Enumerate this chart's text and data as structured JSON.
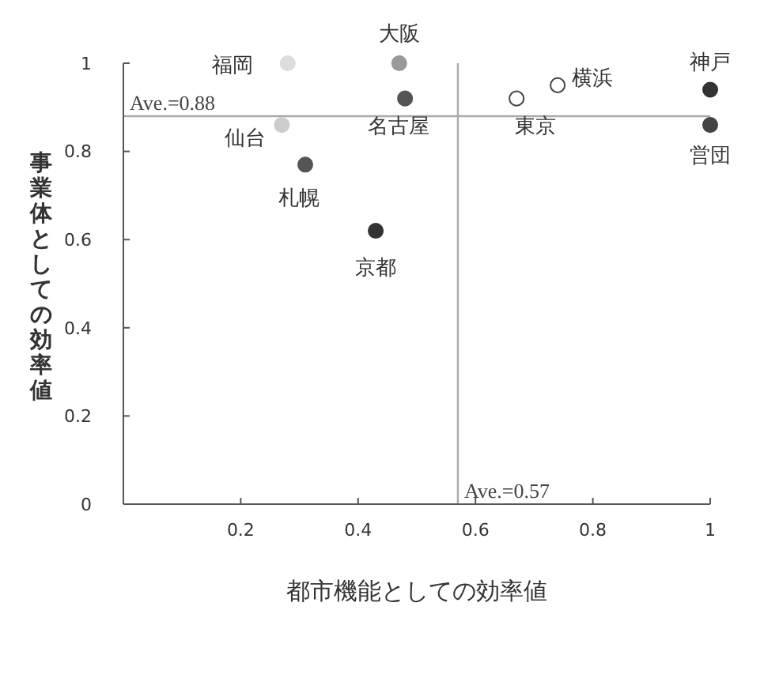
{
  "chart_data": {
    "type": "scatter",
    "xlabel": "都市機能としての効率値",
    "ylabel": "事業体としての効率値",
    "xlim": [
      0,
      1
    ],
    "ylim": [
      0,
      1
    ],
    "xticks": [
      0.2,
      0.4,
      0.6,
      0.8,
      1
    ],
    "yticks": [
      0,
      0.2,
      0.4,
      0.6,
      0.8,
      1
    ],
    "grid": false,
    "marker": "circle",
    "ref_lines": [
      {
        "axis": "y",
        "value": 0.88,
        "label": "Ave.=0.88",
        "color": "#aaaaaa"
      },
      {
        "axis": "x",
        "value": 0.57,
        "label": "Ave.=0.57",
        "color": "#aaaaaa"
      }
    ],
    "series": [
      {
        "name": "福岡",
        "color": "#dddddd",
        "x": [
          0.28
        ],
        "values": [
          1.0
        ]
      },
      {
        "name": "大阪",
        "color": "#999999",
        "x": [
          0.47
        ],
        "values": [
          1.0
        ]
      },
      {
        "name": "名古屋",
        "color": "#555555",
        "x": [
          0.48
        ],
        "values": [
          0.92
        ]
      },
      {
        "name": "仙台",
        "color": "#cccccc",
        "x": [
          0.27
        ],
        "values": [
          0.86
        ]
      },
      {
        "name": "札幌",
        "color": "#555555",
        "x": [
          0.31
        ],
        "values": [
          0.77
        ]
      },
      {
        "name": "京都",
        "color": "#333333",
        "x": [
          0.43
        ],
        "values": [
          0.62
        ]
      },
      {
        "name": "東京",
        "color": "#ffffff",
        "x": [
          0.67
        ],
        "values": [
          0.92
        ]
      },
      {
        "name": "横浜",
        "color": "#ffffff",
        "x": [
          0.74
        ],
        "values": [
          0.95
        ]
      },
      {
        "name": "神戸",
        "color": "#333333",
        "x": [
          1.0
        ],
        "values": [
          0.94
        ]
      },
      {
        "name": "営団",
        "color": "#444444",
        "x": [
          1.0
        ],
        "values": [
          0.86
        ]
      }
    ]
  }
}
